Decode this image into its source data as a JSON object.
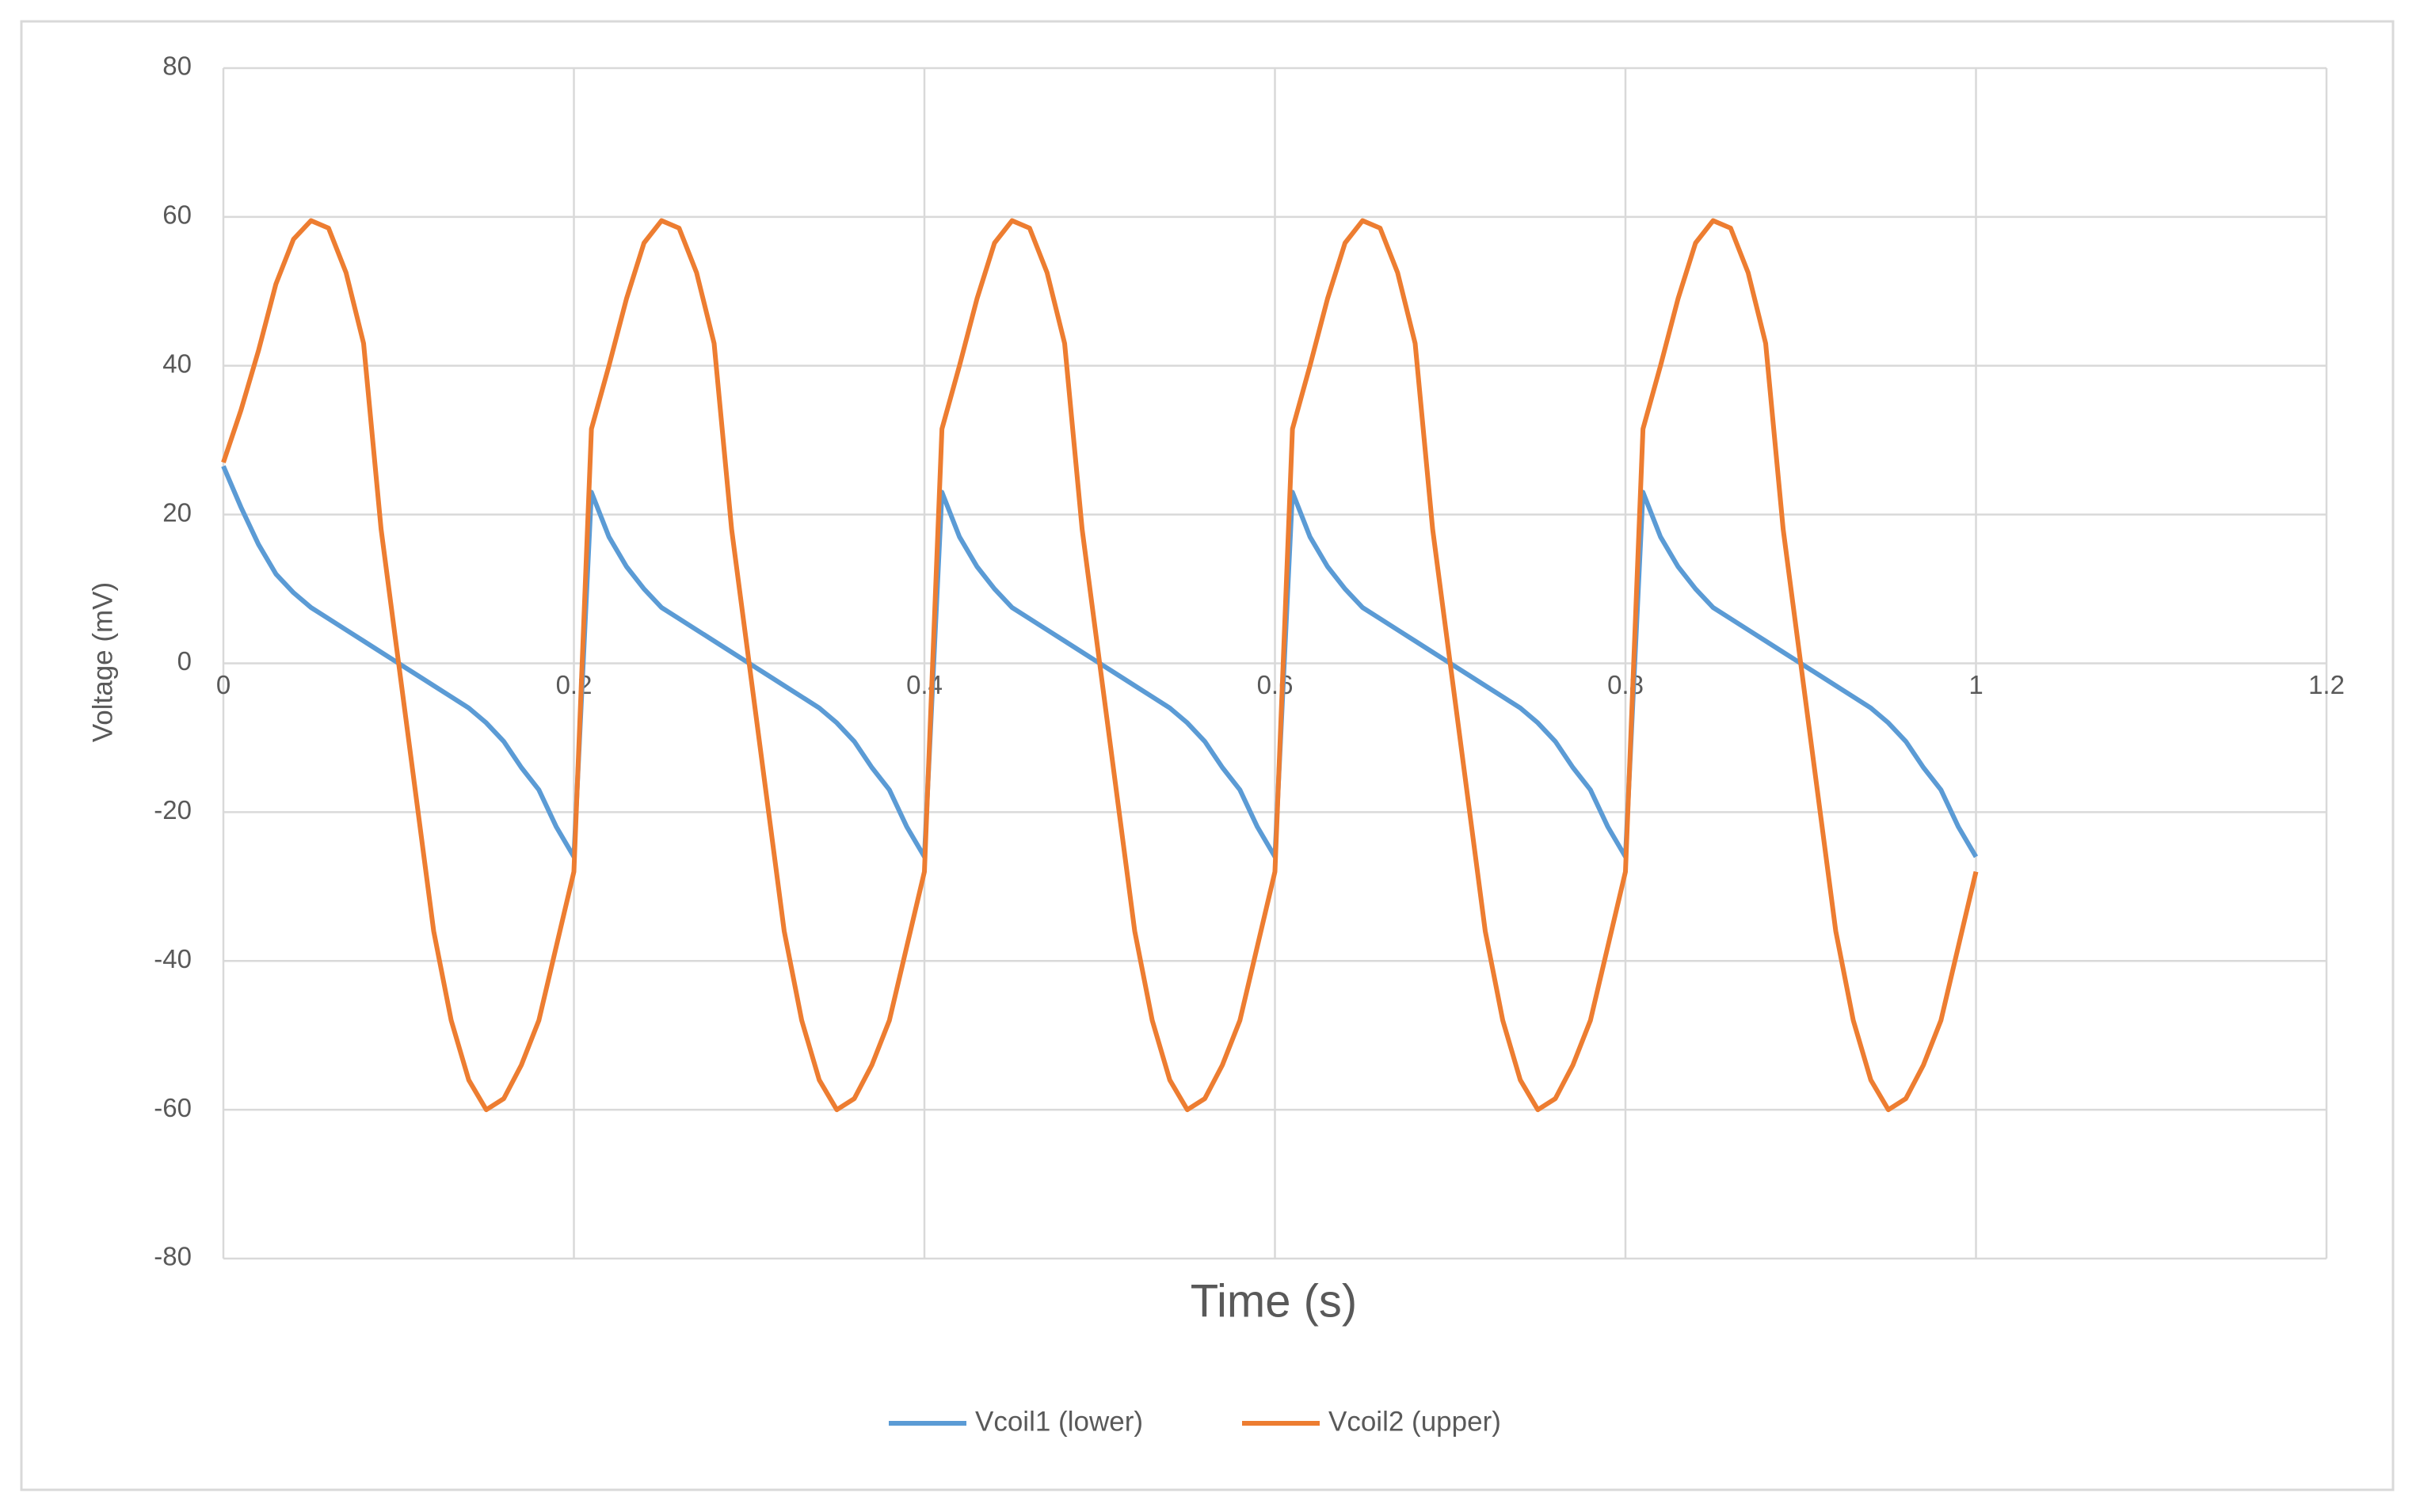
{
  "chart_data": {
    "type": "line",
    "xlabel": "Time (s)",
    "ylabel": "Voltage (mV)",
    "x": [
      0,
      0.01,
      0.02,
      0.03,
      0.04,
      0.05,
      0.06,
      0.07,
      0.08,
      0.09,
      0.1,
      0.11,
      0.12,
      0.13,
      0.14,
      0.15,
      0.16,
      0.17,
      0.18,
      0.19,
      0.2,
      0.21,
      0.22,
      0.23,
      0.24,
      0.25,
      0.26,
      0.27,
      0.28,
      0.29,
      0.3,
      0.31,
      0.32,
      0.33,
      0.34,
      0.35,
      0.36,
      0.37,
      0.38,
      0.39,
      0.4,
      0.41,
      0.42,
      0.43,
      0.44,
      0.45,
      0.46,
      0.47,
      0.48,
      0.49,
      0.5,
      0.51,
      0.52,
      0.53,
      0.54,
      0.55,
      0.56,
      0.57,
      0.58,
      0.59,
      0.6,
      0.61,
      0.62,
      0.63,
      0.64,
      0.65,
      0.66,
      0.67,
      0.68,
      0.69,
      0.7,
      0.71,
      0.72,
      0.73,
      0.74,
      0.75,
      0.76,
      0.77,
      0.78,
      0.79,
      0.8,
      0.81,
      0.82,
      0.83,
      0.84,
      0.85,
      0.86,
      0.87,
      0.88,
      0.89,
      0.9,
      0.91,
      0.92,
      0.93,
      0.94,
      0.95,
      0.96,
      0.97,
      0.98,
      0.99,
      1
    ],
    "series": [
      {
        "name": "Vcoil1 (lower)",
        "color": "#5b9bd5",
        "values": [
          26.5,
          21,
          16,
          12,
          9.5,
          7.5,
          6,
          4.5,
          3,
          1.5,
          0,
          -1.5,
          -3,
          -4.5,
          -6,
          -8,
          -10.5,
          -14,
          -17,
          -22,
          -26,
          23,
          17,
          13,
          10,
          7.5,
          6,
          4.5,
          3,
          1.5,
          0,
          -1.5,
          -3,
          -4.5,
          -6,
          -8,
          -10.5,
          -14,
          -17,
          -22,
          -26,
          23,
          17,
          13,
          10,
          7.5,
          6,
          4.5,
          3,
          1.5,
          0,
          -1.5,
          -3,
          -4.5,
          -6,
          -8,
          -10.5,
          -14,
          -17,
          -22,
          -26,
          23,
          17,
          13,
          10,
          7.5,
          6,
          4.5,
          3,
          1.5,
          0,
          -1.5,
          -3,
          -4.5,
          -6,
          -8,
          -10.5,
          -14,
          -17,
          -22,
          -26,
          23,
          17,
          13,
          10,
          7.5,
          6,
          4.5,
          3,
          1.5,
          0,
          -1.5,
          -3,
          -4.5,
          -6,
          -8,
          -10.5,
          -14,
          -17,
          -22,
          -26
        ]
      },
      {
        "name": "Vcoil2 (upper)",
        "color": "#ed7d31",
        "values": [
          27,
          34,
          42,
          51,
          57,
          59.5,
          58.5,
          52.5,
          43,
          18,
          0,
          -18,
          -36,
          -48,
          -56,
          -60,
          -58.5,
          -54,
          -48,
          -38,
          -28,
          31.5,
          40,
          49,
          56.5,
          59.5,
          58.5,
          52.5,
          43,
          18,
          0,
          -18,
          -36,
          -48,
          -56,
          -60,
          -58.5,
          -54,
          -48,
          -38,
          -28,
          31.5,
          40,
          49,
          56.5,
          59.5,
          58.5,
          52.5,
          43,
          18,
          0,
          -18,
          -36,
          -48,
          -56,
          -60,
          -58.5,
          -54,
          -48,
          -38,
          -28,
          31.5,
          40,
          49,
          56.5,
          59.5,
          58.5,
          52.5,
          43,
          18,
          0,
          -18,
          -36,
          -48,
          -56,
          -60,
          -58.5,
          -54,
          -48,
          -38,
          -28,
          31.5,
          40,
          49,
          56.5,
          59.5,
          58.5,
          52.5,
          43,
          18,
          0,
          -18,
          -36,
          -48,
          -56,
          -60,
          -58.5,
          -54,
          -48,
          -38,
          -28
        ]
      }
    ],
    "xlim": [
      0,
      1.2
    ],
    "xticks": [
      0,
      0.2,
      0.4,
      0.6,
      0.8,
      1,
      1.2
    ],
    "ylim": [
      -80,
      80
    ],
    "yticks": [
      -80,
      -60,
      -40,
      -20,
      0,
      20,
      40,
      60,
      80
    ],
    "grid": true,
    "legend": "bottom"
  }
}
